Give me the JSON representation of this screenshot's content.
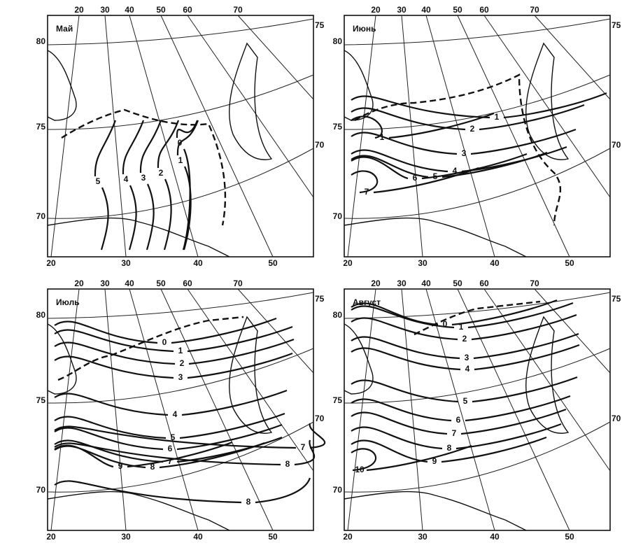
{
  "panels": [
    {
      "title": "Май",
      "top_labels": [
        20,
        30,
        40,
        50,
        60,
        70
      ],
      "right_labels": [
        75,
        70
      ],
      "left_labels": [
        80,
        75,
        70
      ],
      "bottom_labels": [
        20,
        30,
        40,
        50
      ],
      "contour_labels": [
        0,
        1,
        2,
        3,
        4,
        5
      ]
    },
    {
      "title": "Июнь",
      "top_labels": [
        20,
        30,
        40,
        50,
        60,
        70
      ],
      "right_labels": [
        75,
        70
      ],
      "left_labels": [
        80,
        75,
        70
      ],
      "bottom_labels": [
        20,
        30,
        40,
        50
      ],
      "contour_labels": [
        1,
        2,
        3,
        4,
        5,
        6,
        7,
        1
      ]
    },
    {
      "title": "Июль",
      "top_labels": [
        20,
        30,
        40,
        50,
        60,
        70
      ],
      "right_labels": [
        75,
        70
      ],
      "left_labels": [
        80,
        75,
        70
      ],
      "bottom_labels": [
        20,
        30,
        40,
        50
      ],
      "contour_labels": [
        0,
        1,
        2,
        3,
        4,
        5,
        6,
        7,
        8,
        9,
        7,
        8,
        8
      ]
    },
    {
      "title": "Август",
      "top_labels": [
        20,
        30,
        40,
        50,
        60,
        70
      ],
      "right_labels": [
        75,
        70
      ],
      "left_labels": [
        80,
        75,
        70
      ],
      "bottom_labels": [
        20,
        30,
        40,
        50
      ],
      "contour_labels": [
        0,
        1,
        2,
        3,
        4,
        5,
        6,
        7,
        8,
        9,
        10
      ]
    }
  ]
}
